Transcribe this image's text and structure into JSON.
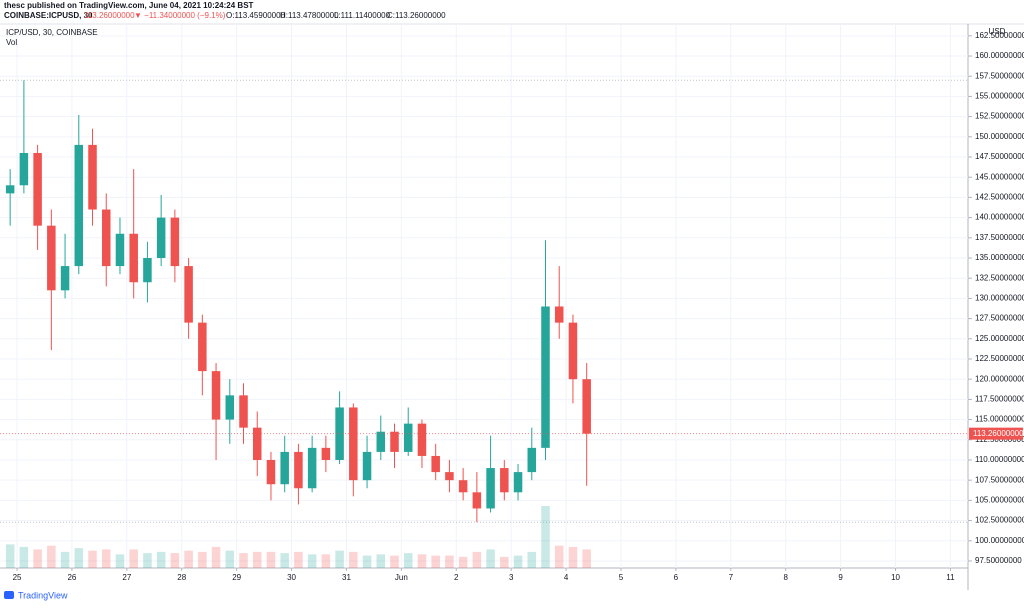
{
  "header": {
    "author_line": "thesc published on TradingView.com, June 04, 2021 10:24:24 BST",
    "symbol": "COINBASE:ICPUSD, 30",
    "last": "113.26000000",
    "change": "▼ −11.34000000 (−9.1%)",
    "open": "O:113.45900000",
    "high": "H:113.47800000",
    "low": "L:111.11400000",
    "close": "C:113.26000000"
  },
  "chart_data": {
    "type": "candlestick",
    "legend_title": "ICP/USD, 30, COINBASE",
    "volume_title": "Vol",
    "currency": "USD",
    "last_price_label": "113.26000000",
    "brand": "TradingView",
    "up_color": "#26a69a",
    "down_color": "#ef5350",
    "grid": true,
    "x": [
      24.875,
      25.125,
      25.375,
      25.625,
      25.875,
      26.125,
      26.375,
      26.625,
      26.875,
      27.125,
      27.375,
      27.625,
      27.875,
      28.125,
      28.375,
      28.625,
      28.875,
      29.125,
      29.375,
      29.625,
      29.875,
      30.125,
      30.375,
      30.625,
      30.875,
      31.125,
      31.375,
      31.625,
      31.875,
      32.125,
      32.375,
      32.625,
      32.875,
      33.125,
      33.375,
      33.625,
      33.875,
      34.125,
      34.375,
      34.625,
      34.875,
      35.125,
      35.375
    ],
    "open": [
      143,
      144,
      148,
      139,
      131,
      134,
      149,
      141,
      134,
      138,
      132,
      135,
      140,
      134,
      127,
      121,
      115,
      118,
      114,
      110,
      107,
      111,
      106.5,
      111.5,
      110,
      116.5,
      107.5,
      111,
      113.5,
      111,
      114.5,
      110.5,
      108.5,
      107.5,
      106,
      104,
      109,
      106,
      108.5,
      111.5,
      129,
      127,
      120
    ],
    "high": [
      146,
      157,
      149,
      141,
      138,
      152.7,
      151,
      143,
      140,
      146,
      137,
      142.8,
      141,
      135,
      128,
      122,
      120,
      119.5,
      116,
      111,
      113,
      112,
      113,
      113,
      118.5,
      117,
      113,
      115.5,
      114.5,
      116.5,
      115,
      112,
      110,
      109,
      108.5,
      113,
      110,
      109.5,
      114,
      137.2,
      134,
      128,
      122
    ],
    "low": [
      139,
      143,
      136,
      123.6,
      130,
      133,
      139,
      131.5,
      133,
      130,
      129.5,
      134,
      132,
      125,
      118,
      110,
      112,
      112,
      108,
      105,
      106,
      104.5,
      106,
      108.5,
      109.5,
      105.5,
      106.5,
      110,
      109,
      110.5,
      109,
      107.5,
      106,
      105,
      102.3,
      103.5,
      105,
      105,
      107.5,
      110,
      125,
      117,
      106.8
    ],
    "close": [
      144,
      148,
      139,
      131,
      134,
      149,
      141,
      134,
      138,
      132,
      135,
      140,
      134,
      127,
      121,
      115,
      118,
      114,
      110,
      107,
      111,
      106.5,
      111.5,
      110,
      116.5,
      107.5,
      111,
      113.5,
      111,
      114.5,
      110.5,
      108.5,
      107.5,
      106,
      104,
      109,
      106,
      108.5,
      111.5,
      129,
      127,
      120,
      113.26
    ],
    "volume": [
      38,
      34,
      30,
      36,
      26,
      32,
      28,
      30,
      22,
      30,
      24,
      26,
      24,
      28,
      26,
      34,
      28,
      24,
      26,
      26,
      24,
      26,
      22,
      22,
      28,
      26,
      20,
      22,
      20,
      24,
      22,
      20,
      20,
      18,
      26,
      30,
      18,
      20,
      26,
      100,
      36,
      34,
      30
    ],
    "xlim": [
      24.69,
      42.32
    ],
    "xticks": [
      25,
      26,
      27,
      28,
      29,
      30,
      31,
      {
        "value": 32,
        "label": "Jun"
      },
      {
        "value": 33,
        "label": "2"
      },
      {
        "value": 34,
        "label": "3"
      },
      {
        "value": 35,
        "label": "4"
      },
      {
        "value": 36,
        "label": "5"
      },
      {
        "value": 37,
        "label": "6"
      },
      {
        "value": 38,
        "label": "7"
      },
      {
        "value": 39,
        "label": "8"
      },
      {
        "value": 40,
        "label": "9"
      },
      {
        "value": 41,
        "label": "10"
      },
      {
        "value": 42,
        "label": "11"
      }
    ],
    "ylim": [
      96.63,
      163.84
    ],
    "yticks": [
      {
        "value": 97.5,
        "label": "97.50000000"
      },
      {
        "value": 100,
        "label": "100.00000000"
      },
      {
        "value": 102.5,
        "label": "102.50000000"
      },
      {
        "value": 105,
        "label": "105.00000000"
      },
      {
        "value": 107.5,
        "label": "107.50000000"
      },
      {
        "value": 110,
        "label": "110.00000000"
      },
      {
        "value": 112.5,
        "label": "112.50000000"
      },
      {
        "value": 115,
        "label": "115.00000000"
      },
      {
        "value": 117.5,
        "label": "117.50000000"
      },
      {
        "value": 120,
        "label": "120.00000000"
      },
      {
        "value": 122.5,
        "label": "122.50000000"
      },
      {
        "value": 125,
        "label": "125.00000000"
      },
      {
        "value": 127.5,
        "label": "127.50000000"
      },
      {
        "value": 130,
        "label": "130.00000000"
      },
      {
        "value": 132.5,
        "label": "132.50000000"
      },
      {
        "value": 135,
        "label": "135.00000000"
      },
      {
        "value": 137.5,
        "label": "137.50000000"
      },
      {
        "value": 140,
        "label": "140.00000000"
      },
      {
        "value": 142.5,
        "label": "142.50000000"
      },
      {
        "value": 145,
        "label": "145.00000000"
      },
      {
        "value": 147.5,
        "label": "147.50000000"
      },
      {
        "value": 150,
        "label": "150.00000000"
      },
      {
        "value": 152.5,
        "label": "152.50000000"
      },
      {
        "value": 155,
        "label": "155.00000000"
      },
      {
        "value": 157.5,
        "label": "157.50000000"
      },
      {
        "value": 160,
        "label": "160.00000000"
      },
      {
        "value": 162.5,
        "label": "162.50000000"
      }
    ]
  }
}
